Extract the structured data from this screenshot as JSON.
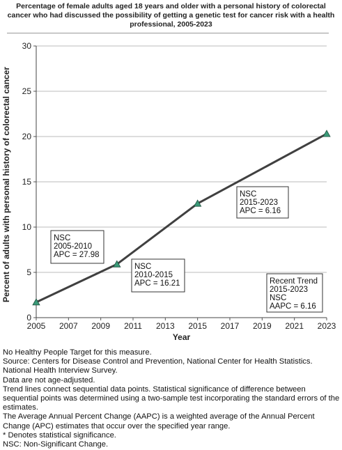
{
  "chart_data": {
    "type": "line",
    "title": "Percentage of female adults aged 18 years and older with a personal history of colorectal cancer who had discussed the possibility of getting a genetic test for cancer risk with a health professional, 2005-2023",
    "xlabel": "Year",
    "ylabel": "Percent of adults with personal history of colorectal cancer",
    "xlim": [
      2005,
      2023
    ],
    "ylim": [
      0,
      30
    ],
    "x_ticks": [
      "2005",
      "2007",
      "2009",
      "2011",
      "2013",
      "2015",
      "2017",
      "2019",
      "2021",
      "2023"
    ],
    "y_ticks": [
      "0",
      "5",
      "10",
      "15",
      "20",
      "25",
      "30"
    ],
    "grid": "horizontal",
    "series": [
      {
        "color": "#404040",
        "marker_color": "#3a9a78",
        "x": [
          2005,
          2010,
          2015,
          2023
        ],
        "y": [
          1.7,
          5.9,
          12.6,
          20.3
        ]
      }
    ],
    "annotations": [
      {
        "lines": [
          "NSC",
          "2005-2010",
          "APC = 27.98"
        ]
      },
      {
        "lines": [
          "NSC",
          "2010-2015",
          "APC = 16.21"
        ]
      },
      {
        "lines": [
          "NSC",
          "2015-2023",
          "APC =  6.16"
        ]
      },
      {
        "lines": [
          "Recent Trend",
          "2015-2023",
          "NSC",
          "AAPC =  6.16"
        ]
      }
    ]
  },
  "notes": [
    "No Healthy People Target for this measure.",
    "Source: Centers for Disease Control and Prevention, National Center for Health Statistics. National Health Interview Survey.",
    "Data are not age-adjusted.",
    "Trend lines connect sequential data points. Statistical significance of difference between sequential points was determined using a two-sample test incorporating the standard errors of the estimates.",
    "The Average Annual Percent Change (AAPC) is a weighted average of the Annual Percent Change (APC) estimates that occur over the specified year range.",
    "* Denotes statistical significance.",
    "NSC: Non-Significant Change."
  ]
}
